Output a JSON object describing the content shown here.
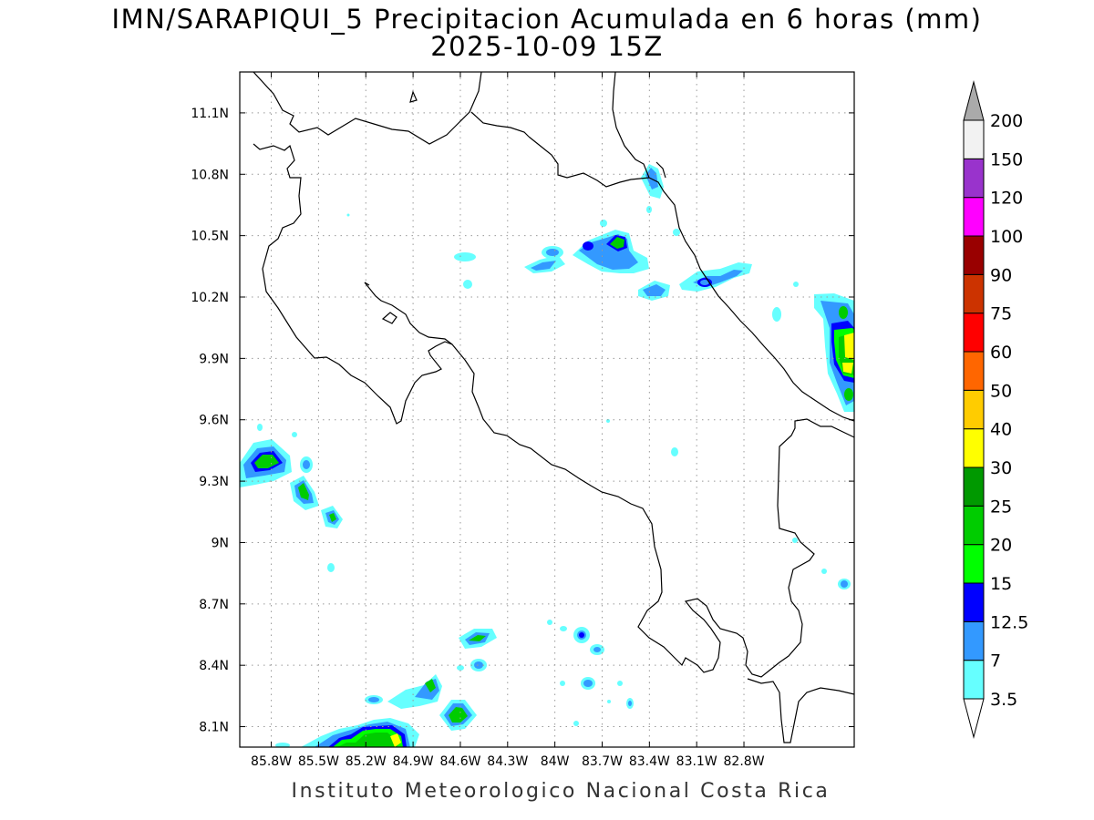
{
  "title": {
    "line1": "IMN/SARAPIQUI_5 Precipitacion Acumulada en 6 horas (mm)",
    "line2": "2025-10-09 15Z"
  },
  "footer": "Instituto Meteorologico Nacional Costa Rica",
  "map": {
    "lon_range": [
      -86.0,
      -82.1
    ],
    "lat_range": [
      8.0,
      11.3
    ],
    "lon_ticks": [
      "85.8W",
      "85.5W",
      "85.2W",
      "84.9W",
      "84.6W",
      "84.3W",
      "84W",
      "83.7W",
      "83.4W",
      "83.1W",
      "82.8W"
    ],
    "lat_ticks": [
      "8.1N",
      "8.4N",
      "8.7N",
      "9N",
      "9.3N",
      "9.6N",
      "9.9N",
      "10.2N",
      "10.5N",
      "10.8N",
      "11.1N"
    ],
    "grid": "dotted"
  },
  "colorbar": {
    "levels": [
      "3.5",
      "7",
      "12.5",
      "15",
      "20",
      "25",
      "30",
      "40",
      "50",
      "60",
      "75",
      "90",
      "100",
      "120",
      "150",
      "200"
    ],
    "colors": [
      "#66ffff",
      "#3399ff",
      "#0000ff",
      "#00ff00",
      "#00cc00",
      "#009900",
      "#ffff00",
      "#ffcc00",
      "#ff6600",
      "#ff0000",
      "#cc3300",
      "#990000",
      "#ff00ff",
      "#9933cc",
      "#f2f2f2",
      "#aaaaaa"
    ]
  }
}
